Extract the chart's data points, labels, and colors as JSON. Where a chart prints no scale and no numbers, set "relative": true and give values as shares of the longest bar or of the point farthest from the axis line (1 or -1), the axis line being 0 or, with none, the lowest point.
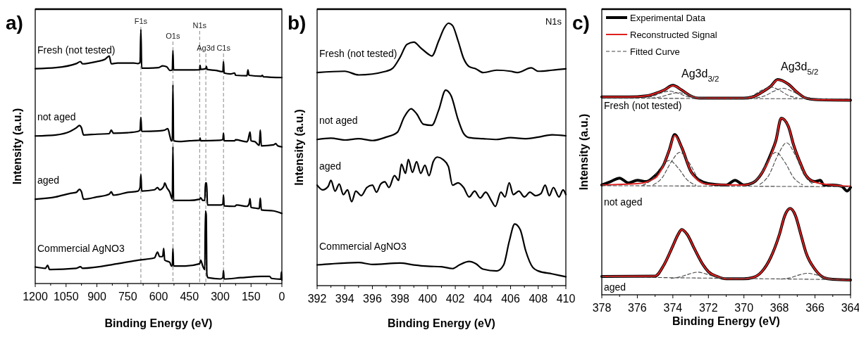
{
  "chart_data": [
    {
      "type": "line",
      "title": "a)",
      "xlabel": "Binding Energy (eV)",
      "ylabel": "Intensity (a.u.)",
      "relative": true,
      "xlim": [
        1200,
        0
      ],
      "xticks": [
        1200,
        1050,
        900,
        750,
        600,
        450,
        300,
        150,
        0
      ],
      "ref_lines": [
        {
          "axis": "x",
          "value": 686,
          "label": "F1s",
          "color": "#888888",
          "line_style": "dashed"
        },
        {
          "axis": "x",
          "value": 530,
          "label": "O1s",
          "color": "#888888",
          "line_style": "dashed"
        },
        {
          "axis": "x",
          "value": 400,
          "label": "N1s",
          "color": "#888888",
          "line_style": "dashed"
        },
        {
          "axis": "x",
          "value": 370,
          "label": "Ag3d",
          "color": "#888888",
          "line_style": "dashed"
        },
        {
          "axis": "x",
          "value": 284,
          "label": "C1s",
          "color": "#888888",
          "line_style": "dashed"
        }
      ],
      "series": [
        {
          "name": "Fresh (not tested)",
          "color": "#000000",
          "x": [
            1200,
            1100,
            1000,
            980,
            970,
            900,
            860,
            840,
            830,
            800,
            720,
            700,
            690,
            686,
            682,
            650,
            600,
            580,
            560,
            545,
            533,
            530,
            527,
            450,
            400,
            398,
            395,
            370,
            367,
            364,
            320,
            290,
            287,
            284,
            281,
            250,
            230,
            225,
            170,
            165,
            160,
            100,
            95,
            90,
            0
          ],
          "values": [
            0.846,
            0.85,
            0.866,
            0.874,
            0.865,
            0.874,
            0.883,
            0.896,
            0.865,
            0.868,
            0.868,
            0.866,
            0.871,
            1.0,
            0.848,
            0.848,
            0.85,
            0.857,
            0.853,
            0.839,
            0.841,
            0.917,
            0.841,
            0.841,
            0.842,
            0.859,
            0.843,
            0.846,
            0.855,
            0.843,
            0.839,
            0.834,
            0.834,
            0.874,
            0.829,
            0.825,
            0.829,
            0.82,
            0.818,
            0.841,
            0.82,
            0.816,
            0.82,
            0.814,
            0.811
          ]
        },
        {
          "name": "not aged",
          "color": "#000000",
          "x": [
            1200,
            1100,
            1030,
            1000,
            985,
            975,
            965,
            900,
            840,
            830,
            820,
            750,
            700,
            690,
            686,
            682,
            600,
            570,
            555,
            545,
            538,
            533,
            530,
            527,
            500,
            450,
            400,
            398,
            395,
            300,
            287,
            284,
            281,
            230,
            225,
            170,
            165,
            155,
            150,
            130,
            110,
            105,
            100,
            40,
            30,
            20,
            0
          ],
          "values": [
            0.581,
            0.585,
            0.599,
            0.613,
            0.622,
            0.613,
            0.585,
            0.588,
            0.59,
            0.604,
            0.592,
            0.594,
            0.599,
            0.604,
            0.654,
            0.599,
            0.601,
            0.604,
            0.61,
            0.581,
            0.562,
            0.562,
            0.783,
            0.562,
            0.559,
            0.562,
            0.564,
            0.573,
            0.562,
            0.564,
            0.567,
            0.592,
            0.562,
            0.562,
            0.566,
            0.558,
            0.564,
            0.597,
            0.562,
            0.558,
            0.544,
            0.604,
            0.542,
            0.546,
            0.551,
            0.542,
            0.538
          ]
        },
        {
          "name": "aged",
          "color": "#000000",
          "x": [
            1200,
            1100,
            1030,
            1000,
            985,
            975,
            965,
            900,
            840,
            830,
            820,
            750,
            700,
            690,
            686,
            682,
            620,
            605,
            595,
            575,
            570,
            560,
            545,
            538,
            533,
            530,
            527,
            450,
            400,
            395,
            385,
            375,
            372,
            366,
            362,
            300,
            287,
            284,
            281,
            230,
            220,
            170,
            160,
            155,
            150,
            130,
            110,
            105,
            100,
            40,
            0
          ],
          "values": [
            0.332,
            0.341,
            0.355,
            0.359,
            0.371,
            0.361,
            0.332,
            0.341,
            0.352,
            0.361,
            0.348,
            0.359,
            0.364,
            0.378,
            0.429,
            0.364,
            0.369,
            0.378,
            0.369,
            0.382,
            0.396,
            0.378,
            0.359,
            0.341,
            0.332,
            0.539,
            0.327,
            0.327,
            0.332,
            0.338,
            0.327,
            0.327,
            0.396,
            0.396,
            0.309,
            0.309,
            0.313,
            0.348,
            0.306,
            0.304,
            0.309,
            0.304,
            0.313,
            0.334,
            0.3,
            0.297,
            0.295,
            0.336,
            0.29,
            0.286,
            0.276
          ]
        },
        {
          "name": "Commercial AgNO3",
          "color": "#000000",
          "x": [
            1200,
            1150,
            1140,
            1130,
            1000,
            980,
            970,
            800,
            700,
            620,
            605,
            595,
            580,
            575,
            570,
            545,
            538,
            533,
            530,
            527,
            470,
            400,
            395,
            385,
            375,
            372,
            368,
            365,
            360,
            300,
            287,
            284,
            281,
            200,
            100,
            60,
            50,
            5,
            2,
            0
          ],
          "values": [
            0.065,
            0.06,
            0.072,
            0.055,
            0.06,
            0.066,
            0.06,
            0.078,
            0.092,
            0.101,
            0.124,
            0.106,
            0.106,
            0.138,
            0.092,
            0.083,
            0.069,
            0.069,
            0.138,
            0.069,
            0.069,
            0.078,
            0.092,
            0.069,
            0.055,
            0.286,
            0.27,
            0.037,
            0.023,
            0.018,
            0.023,
            0.051,
            0.018,
            0.023,
            0.028,
            0.028,
            0.02,
            0.017,
            0.046,
            0.014
          ]
        }
      ]
    },
    {
      "type": "line",
      "title": "b)",
      "xlabel": "Binding Energy (eV)",
      "ylabel": "Intensity (a.u.)",
      "relative": true,
      "xlim": [
        392,
        410
      ],
      "xticks": [
        392,
        394,
        396,
        398,
        400,
        402,
        404,
        406,
        408,
        410
      ],
      "annotations": [
        "N1s"
      ],
      "series": [
        {
          "name": "Fresh (not tested)",
          "color": "#000000",
          "x": [
            392,
            394,
            395,
            397,
            397.5,
            398,
            398.5,
            399,
            399.5,
            400,
            400.3,
            400.8,
            401.2,
            401.5,
            401.8,
            402.2,
            402.6,
            403,
            403.5,
            404,
            405,
            406,
            406.5,
            407.5,
            408,
            409,
            410
          ],
          "values": [
            0.812,
            0.817,
            0.803,
            0.817,
            0.83,
            0.87,
            0.919,
            0.928,
            0.906,
            0.884,
            0.875,
            0.933,
            0.982,
            1.0,
            0.991,
            0.933,
            0.866,
            0.835,
            0.826,
            0.812,
            0.821,
            0.817,
            0.812,
            0.83,
            0.817,
            0.821,
            0.826
          ]
        },
        {
          "name": "not aged",
          "color": "#000000",
          "x": [
            392,
            393,
            394,
            395,
            396,
            397,
            397.8,
            398.3,
            398.8,
            399.2,
            399.7,
            400.3,
            400.8,
            401.3,
            401.7,
            402.2,
            402.6,
            403,
            404,
            405,
            406,
            407,
            408,
            409,
            410
          ],
          "values": [
            0.557,
            0.562,
            0.555,
            0.56,
            0.553,
            0.566,
            0.584,
            0.642,
            0.674,
            0.655,
            0.615,
            0.611,
            0.669,
            0.745,
            0.723,
            0.633,
            0.58,
            0.564,
            0.56,
            0.557,
            0.564,
            0.56,
            0.566,
            0.575,
            0.571
          ]
        },
        {
          "name": "aged",
          "color": "#000000",
          "x": [
            392,
            392.4,
            392.8,
            393,
            393.3,
            393.6,
            393.9,
            394.2,
            394.5,
            394.8,
            395.2,
            395.6,
            396,
            396.3,
            396.6,
            396.9,
            397.2,
            397.6,
            397.9,
            398.1,
            398.4,
            398.6,
            398.9,
            399.2,
            399.5,
            399.8,
            400.1,
            400.4,
            400.7,
            401.1,
            401.5,
            401.8,
            402.2,
            402.6,
            403,
            403.4,
            403.8,
            404.2,
            404.6,
            404.9,
            405.3,
            405.6,
            405.9,
            406.2,
            406.6,
            407,
            407.4,
            407.8,
            408.2,
            408.5,
            408.8,
            409.1,
            409.5,
            409.8,
            410
          ],
          "values": [
            0.383,
            0.365,
            0.378,
            0.401,
            0.36,
            0.387,
            0.347,
            0.365,
            0.32,
            0.36,
            0.343,
            0.374,
            0.383,
            0.356,
            0.387,
            0.396,
            0.374,
            0.419,
            0.401,
            0.463,
            0.428,
            0.481,
            0.432,
            0.472,
            0.428,
            0.459,
            0.419,
            0.472,
            0.49,
            0.481,
            0.454,
            0.383,
            0.392,
            0.374,
            0.338,
            0.36,
            0.334,
            0.356,
            0.325,
            0.302,
            0.356,
            0.338,
            0.392,
            0.347,
            0.36,
            0.338,
            0.356,
            0.343,
            0.351,
            0.383,
            0.343,
            0.374,
            0.338,
            0.365,
            0.347
          ]
        },
        {
          "name": "Commercial AgNO3",
          "color": "#000000",
          "x": [
            392,
            393,
            395,
            396,
            398,
            399,
            400,
            401,
            401.8,
            402.3,
            403,
            403.5,
            404,
            405,
            405.5,
            405.9,
            406.3,
            406.7,
            407.1,
            407.6,
            408,
            409,
            410
          ],
          "values": [
            0.079,
            0.083,
            0.088,
            0.081,
            0.086,
            0.079,
            0.074,
            0.072,
            0.065,
            0.079,
            0.092,
            0.083,
            0.063,
            0.056,
            0.079,
            0.168,
            0.235,
            0.213,
            0.132,
            0.07,
            0.056,
            0.045,
            0.034
          ]
        }
      ]
    },
    {
      "type": "line",
      "title": "c)",
      "xlabel": "Binding Energy (eV)",
      "ylabel": "Intensity (a.u.)",
      "relative": true,
      "xlim": [
        378,
        364
      ],
      "xticks": [
        378,
        376,
        374,
        372,
        370,
        368,
        366,
        364
      ],
      "legend": "top left",
      "annotations": [
        "Ag3d$_{3/2}$",
        "Ag3d$_{5/2}$",
        "Fresh (not tested)",
        "not aged",
        "aged"
      ],
      "series": [
        {
          "name": "Experimental Data",
          "color": "#000000",
          "x": [
            378,
            376.5,
            375.5,
            375,
            374.5,
            374,
            373.5,
            373,
            372.5,
            370,
            369.5,
            369,
            368.5,
            368.1,
            367.5,
            367,
            366.5,
            366,
            364
          ],
          "values": [
            0.919,
            0.919,
            0.924,
            0.935,
            0.951,
            0.973,
            0.951,
            0.924,
            0.913,
            0.913,
            0.919,
            0.94,
            0.968,
            1.0,
            0.978,
            0.94,
            0.913,
            0.907,
            0.904
          ]
        },
        {
          "color": "#000000",
          "x": [
            378,
            377.5,
            377,
            376.5,
            376,
            375.5,
            375,
            374.5,
            374.2,
            373.9,
            373.5,
            373,
            372.5,
            372,
            371,
            370.5,
            370,
            369.5,
            369,
            368.5,
            368.2,
            367.9,
            367.5,
            367.2,
            366.8,
            366.5,
            366,
            365.7,
            365.5,
            365,
            364.5,
            364.2,
            364
          ],
          "values": [
            0.51,
            0.526,
            0.542,
            0.52,
            0.532,
            0.526,
            0.553,
            0.607,
            0.673,
            0.744,
            0.684,
            0.575,
            0.532,
            0.516,
            0.51,
            0.532,
            0.51,
            0.52,
            0.564,
            0.651,
            0.717,
            0.82,
            0.782,
            0.695,
            0.607,
            0.553,
            0.526,
            0.532,
            0.51,
            0.51,
            0.504,
            0.482,
            0.499
          ]
        },
        {
          "color": "#000000",
          "x": [
            378,
            375,
            374.5,
            374,
            373.7,
            373.5,
            373.2,
            372.8,
            372.3,
            372,
            371.5,
            371,
            370,
            369.5,
            369,
            368.5,
            368,
            367.7,
            367.4,
            367.1,
            366.8,
            366.5,
            366,
            365.5,
            365,
            364
          ],
          "values": [
            0.085,
            0.087,
            0.139,
            0.227,
            0.281,
            0.303,
            0.281,
            0.216,
            0.139,
            0.107,
            0.085,
            0.074,
            0.074,
            0.08,
            0.107,
            0.172,
            0.281,
            0.368,
            0.401,
            0.368,
            0.281,
            0.194,
            0.118,
            0.08,
            0.072,
            0.069
          ]
        },
        {
          "name": "Reconstructed Signal",
          "color": "#e02020",
          "x": [
            378,
            376.5,
            375.5,
            375,
            374.5,
            374,
            373.5,
            373,
            372.5,
            370,
            369.5,
            369,
            368.5,
            368.1,
            367.5,
            367,
            366.5,
            366,
            364
          ],
          "values": [
            0.919,
            0.919,
            0.924,
            0.935,
            0.951,
            0.971,
            0.951,
            0.924,
            0.913,
            0.913,
            0.919,
            0.94,
            0.968,
            0.998,
            0.978,
            0.94,
            0.913,
            0.907,
            0.904
          ]
        },
        {
          "color": "#e02020",
          "x": [
            378,
            376,
            375,
            374.5,
            374.2,
            373.9,
            373.5,
            373,
            372.5,
            372,
            370,
            369.5,
            369,
            368.5,
            368.2,
            367.9,
            367.5,
            367.2,
            366.8,
            366.5,
            366,
            365,
            364
          ],
          "values": [
            0.51,
            0.516,
            0.542,
            0.607,
            0.673,
            0.74,
            0.684,
            0.575,
            0.526,
            0.513,
            0.51,
            0.52,
            0.564,
            0.645,
            0.717,
            0.82,
            0.782,
            0.695,
            0.607,
            0.553,
            0.523,
            0.51,
            0.504
          ]
        },
        {
          "color": "#e02020",
          "x": [
            378,
            375,
            374.5,
            374,
            373.7,
            373.5,
            373.2,
            372.8,
            372.3,
            372,
            371.5,
            371,
            370,
            369.5,
            369,
            368.5,
            368,
            367.7,
            367.4,
            367.1,
            366.8,
            366.5,
            366,
            365.5,
            365,
            364
          ],
          "values": [
            0.085,
            0.087,
            0.139,
            0.227,
            0.281,
            0.303,
            0.281,
            0.216,
            0.139,
            0.107,
            0.085,
            0.074,
            0.074,
            0.08,
            0.107,
            0.172,
            0.281,
            0.368,
            0.401,
            0.368,
            0.281,
            0.194,
            0.118,
            0.08,
            0.072,
            0.069
          ]
        },
        {
          "name": "Fitted Curve",
          "color": "#444444",
          "line_style": "dashed",
          "x": [
            378,
            364
          ],
          "values": [
            0.913,
            0.91
          ]
        },
        {
          "color": "#444444",
          "line_style": "dashed",
          "x": [
            375.7,
            375.2,
            374.7,
            374.2,
            373.7,
            373.2,
            372.7
          ],
          "values": [
            0.915,
            0.921,
            0.936,
            0.946,
            0.936,
            0.921,
            0.915
          ]
        },
        {
          "color": "#444444",
          "line_style": "dashed",
          "x": [
            375.2,
            374.7,
            374.2,
            373.7,
            373.2,
            372.7,
            372.2
          ],
          "values": [
            0.914,
            0.919,
            0.931,
            0.939,
            0.931,
            0.919,
            0.914
          ]
        },
        {
          "color": "#444444",
          "line_style": "dashed",
          "x": [
            370,
            369.5,
            369,
            368.5,
            368,
            367.5,
            367
          ],
          "values": [
            0.915,
            0.926,
            0.95,
            0.965,
            0.95,
            0.926,
            0.915
          ]
        },
        {
          "color": "#444444",
          "line_style": "dashed",
          "x": [
            369.3,
            368.8,
            368.3,
            367.8,
            367.3,
            366.8,
            366.3
          ],
          "values": [
            0.915,
            0.925,
            0.946,
            0.959,
            0.946,
            0.925,
            0.915
          ]
        },
        {
          "color": "#444444",
          "line_style": "dashed",
          "x": [
            378,
            364
          ],
          "values": [
            0.507,
            0.502
          ]
        },
        {
          "color": "#444444",
          "line_style": "dashed",
          "x": [
            375.7,
            375.2,
            374.7,
            374.2,
            373.7,
            373.2,
            372.7
          ],
          "values": [
            0.509,
            0.534,
            0.589,
            0.624,
            0.589,
            0.534,
            0.509
          ]
        },
        {
          "color": "#444444",
          "line_style": "dashed",
          "x": [
            375.1,
            374.6,
            374.1,
            373.6,
            373.1,
            372.6,
            372.1
          ],
          "values": [
            0.511,
            0.544,
            0.616,
            0.662,
            0.616,
            0.544,
            0.511
          ]
        },
        {
          "color": "#444444",
          "line_style": "dashed",
          "x": [
            369.7,
            369.2,
            368.7,
            368.2,
            367.7,
            367.2,
            366.7
          ],
          "values": [
            0.511,
            0.544,
            0.616,
            0.662,
            0.616,
            0.544,
            0.511
          ]
        },
        {
          "color": "#444444",
          "line_style": "dashed",
          "x": [
            369.1,
            368.6,
            368.1,
            367.6,
            367.1,
            366.6,
            366.1
          ],
          "values": [
            0.513,
            0.555,
            0.647,
            0.706,
            0.647,
            0.555,
            0.513
          ]
        },
        {
          "color": "#444444",
          "line_style": "dashed",
          "x": [
            378,
            364
          ],
          "values": [
            0.083,
            0.07
          ]
        },
        {
          "color": "#444444",
          "line_style": "dashed",
          "x": [
            374.1,
            373.6,
            373.1,
            372.6,
            372.1,
            371.6,
            371.1
          ],
          "values": [
            0.076,
            0.083,
            0.096,
            0.105,
            0.096,
            0.083,
            0.076
          ]
        },
        {
          "color": "#444444",
          "line_style": "dashed",
          "x": [
            367.9,
            367.4,
            366.9,
            366.4,
            365.9,
            365.4,
            364.9
          ],
          "values": [
            0.073,
            0.079,
            0.092,
            0.1,
            0.092,
            0.079,
            0.073
          ]
        }
      ]
    }
  ]
}
